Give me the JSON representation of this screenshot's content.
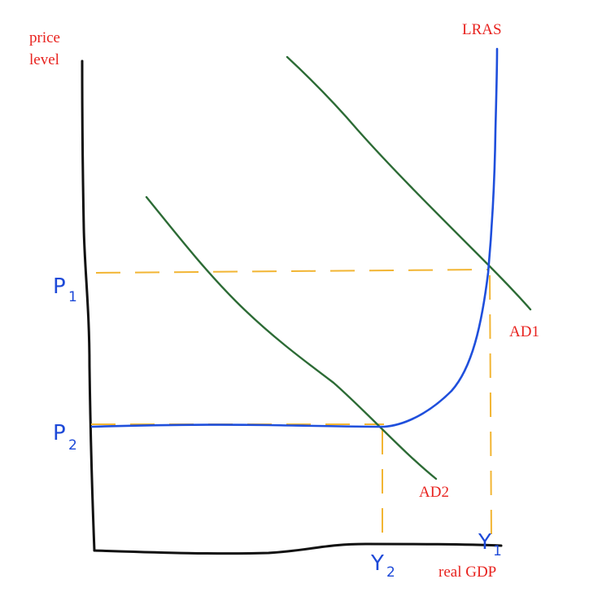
{
  "diagram": {
    "y_axis_label_line1": "price",
    "y_axis_label_line2": "level",
    "x_axis_label": "real GDP",
    "lras_label": "LRAS",
    "ad1_label": "AD1",
    "ad2_label": "AD2",
    "p1_letter": "P",
    "p1_sub": "1",
    "p2_letter": "P",
    "p2_sub": "2",
    "y1_letter": "Y",
    "y1_sub": "1",
    "y2_letter": "Y",
    "y2_sub": "2"
  },
  "colors": {
    "axis": "#111111",
    "aggregate_demand": "#2c6b35",
    "supply_curve": "#1f4fdc",
    "guide_lines": "#f2b533",
    "labels_red": "#e8231f",
    "labels_blue": "#1d49d8"
  }
}
